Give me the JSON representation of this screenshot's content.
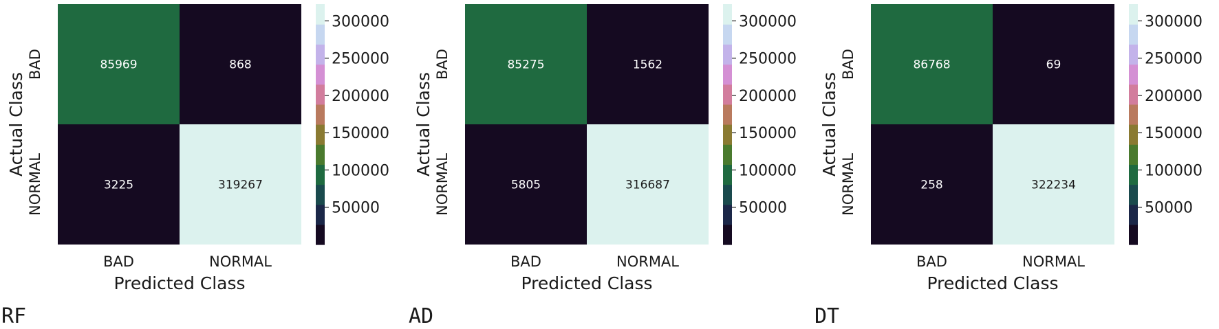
{
  "colors": {
    "dark": "#150a21",
    "bad_bad": "#1f6a40",
    "light": "#dcf2ee",
    "cell_text": "#ffffff",
    "cell_text_light": "#1a1a1a",
    "colorbar": [
      "#150a21",
      "#1b2748",
      "#1a4a4d",
      "#1f6a40",
      "#4a7a2e",
      "#8a7a32",
      "#b97a5e",
      "#d27d9d",
      "#d490d4",
      "#c3b3ea",
      "#c6d7f0",
      "#dcf2ee"
    ]
  },
  "chart_data": [
    {
      "type": "heatmap",
      "caption": "RF",
      "xlabel": "Predicted Class",
      "ylabel": "Actual Class",
      "x_categories": [
        "BAD",
        "NORMAL"
      ],
      "y_categories": [
        "BAD",
        "NORMAL"
      ],
      "values": [
        [
          85969,
          868
        ],
        [
          3225,
          319267
        ]
      ],
      "colorbar": {
        "ticks": [
          50000,
          100000,
          150000,
          200000,
          250000,
          300000
        ],
        "range": [
          0,
          322500
        ]
      }
    },
    {
      "type": "heatmap",
      "caption": "AD",
      "xlabel": "Predicted Class",
      "ylabel": "Actual Class",
      "x_categories": [
        "BAD",
        "NORMAL"
      ],
      "y_categories": [
        "BAD",
        "NORMAL"
      ],
      "values": [
        [
          85275,
          1562
        ],
        [
          5805,
          316687
        ]
      ],
      "colorbar": {
        "ticks": [
          50000,
          100000,
          150000,
          200000,
          250000,
          300000
        ],
        "range": [
          0,
          322500
        ]
      }
    },
    {
      "type": "heatmap",
      "caption": "DT",
      "xlabel": "Predicted Class",
      "ylabel": "Actual Class",
      "x_categories": [
        "BAD",
        "NORMAL"
      ],
      "y_categories": [
        "BAD",
        "NORMAL"
      ],
      "values": [
        [
          86768,
          69
        ],
        [
          258,
          322234
        ]
      ],
      "colorbar": {
        "ticks": [
          50000,
          100000,
          150000,
          200000,
          250000,
          300000
        ],
        "range": [
          0,
          322500
        ]
      }
    }
  ]
}
